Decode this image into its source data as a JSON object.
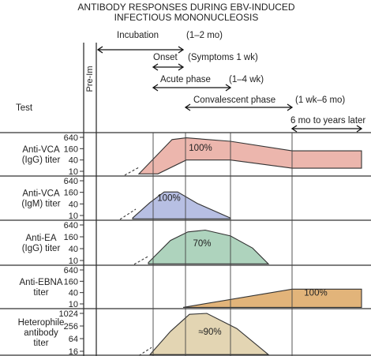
{
  "chart_data": {
    "type": "area",
    "title": "ANTIBODY RESPONSES DURING EBV-INDUCED INFECTIOUS MONONUCLEOSIS",
    "title_lines": [
      "ANTIBODY RESPONSES DURING EBV-INDUCED",
      "INFECTIOUS MONONUCLEOSIS"
    ],
    "column_header": "Test",
    "baseline_marker": "Pre-Im",
    "phases": [
      {
        "key": "incubation",
        "label": "Incubation",
        "duration": "(1–2 mo)"
      },
      {
        "key": "onset",
        "label": "Onset",
        "duration": "(Symptoms 1 wk)"
      },
      {
        "key": "acute",
        "label": "Acute phase",
        "duration": "(1–4 wk)"
      },
      {
        "key": "convalescent",
        "label": "Convalescent phase",
        "duration": "(1 wk–6 mo)"
      },
      {
        "key": "late",
        "label": "6 mo to years later",
        "duration": ""
      }
    ],
    "series": [
      {
        "key": "vca_igg",
        "label_lines": [
          "Anti-VCA",
          "(IgG) titer"
        ],
        "ticks": [
          "640",
          "160",
          "40",
          "10"
        ],
        "color": "#ecb6ad",
        "percent_label": "100%"
      },
      {
        "key": "vca_igm",
        "label_lines": [
          "Anti-VCA",
          "(IgM) titer"
        ],
        "ticks": [
          "640",
          "160",
          "40",
          "10"
        ],
        "color": "#b7bfe3",
        "percent_label": "100%"
      },
      {
        "key": "ea_igg",
        "label_lines": [
          "Anti-EA",
          "(IgG) titer"
        ],
        "ticks": [
          "640",
          "160",
          "40",
          "10"
        ],
        "color": "#aed3bd",
        "percent_label": "70%"
      },
      {
        "key": "ebna",
        "label_lines": [
          "Anti-EBNA",
          "titer"
        ],
        "ticks": [
          "640",
          "160",
          "40",
          "10"
        ],
        "color": "#e2b47a",
        "percent_label": "100%"
      },
      {
        "key": "heterophile",
        "label_lines": [
          "Heterophile",
          "antibody",
          "titer"
        ],
        "ticks": [
          "1024",
          "256",
          "64",
          "16"
        ],
        "color": "#e3d5b3",
        "percent_label": "≈90%"
      }
    ]
  }
}
